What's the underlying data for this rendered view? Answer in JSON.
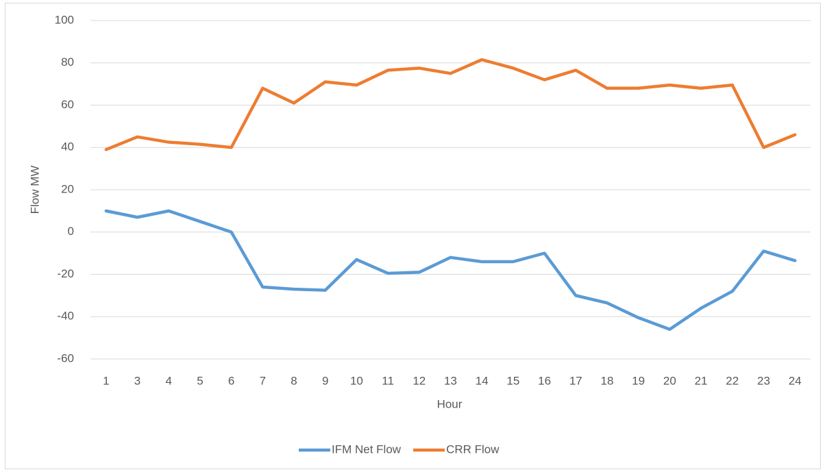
{
  "chart_data": {
    "type": "line",
    "x_label": "Hour",
    "y_label": "Flow MW",
    "categories": [
      "1",
      "3",
      "4",
      "5",
      "6",
      "7",
      "8",
      "9",
      "10",
      "11",
      "12",
      "13",
      "14",
      "15",
      "16",
      "17",
      "18",
      "19",
      "20",
      "21",
      "22",
      "23",
      "24"
    ],
    "series": [
      {
        "name": "IFM Net Flow",
        "color": "#5b9bd5",
        "values": [
          10,
          7,
          10,
          5,
          0,
          -26,
          -27,
          -27.5,
          -13,
          -19.5,
          -19,
          -12,
          -14,
          -14,
          -10,
          -30,
          -33.5,
          -40.5,
          -46,
          -36,
          -28,
          -9,
          -13.5
        ]
      },
      {
        "name": "CRR Flow",
        "color": "#ed7d31",
        "values": [
          39,
          45,
          42.5,
          41.5,
          40,
          68,
          61,
          71,
          69.5,
          76.5,
          77.5,
          75,
          81.5,
          77.5,
          72,
          76.5,
          68,
          68,
          69.5,
          68,
          69.5,
          40,
          46
        ]
      }
    ],
    "ylim": [
      -60,
      100
    ],
    "yticks": [
      -60,
      -40,
      -20,
      0,
      20,
      40,
      60,
      80,
      100
    ],
    "grid": true,
    "legend": "bottom"
  }
}
